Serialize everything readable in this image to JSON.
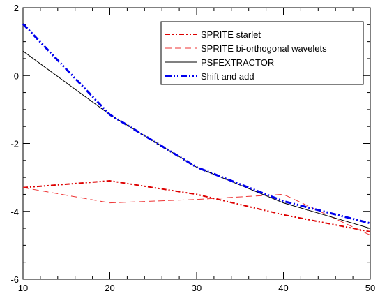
{
  "chart_data": {
    "type": "line",
    "title": "",
    "xlabel": "",
    "ylabel": "",
    "xlim": [
      10,
      50
    ],
    "ylim": [
      -6,
      2
    ],
    "xticks": [
      10,
      20,
      30,
      40,
      50
    ],
    "yticks": [
      -6,
      -4,
      -2,
      0,
      2
    ],
    "grid": false,
    "legend_position": "top-right",
    "series": [
      {
        "name": "SPRITE starlet",
        "color": "#dd0000",
        "style": "dash-dot-dot",
        "x": [
          10,
          20,
          30,
          40,
          50
        ],
        "y": [
          -3.3,
          -3.1,
          -3.5,
          -4.1,
          -4.6
        ]
      },
      {
        "name": "SPRITE bi-orthogonal wavelets",
        "color": "#ee3333",
        "style": "dashed",
        "x": [
          10,
          20,
          30,
          40,
          50
        ],
        "y": [
          -3.3,
          -3.75,
          -3.65,
          -3.5,
          -4.7
        ]
      },
      {
        "name": "PSFEXTRACTOR",
        "color": "#000000",
        "style": "solid",
        "x": [
          10,
          20,
          30,
          40,
          50
        ],
        "y": [
          0.72,
          -1.15,
          -2.7,
          -3.75,
          -4.5
        ]
      },
      {
        "name": "Shift and add",
        "color": "#0000ee",
        "style": "thick-dash-dot-dot",
        "x": [
          10,
          20,
          30,
          40,
          50
        ],
        "y": [
          1.52,
          -1.15,
          -2.7,
          -3.7,
          -4.35
        ]
      }
    ]
  }
}
